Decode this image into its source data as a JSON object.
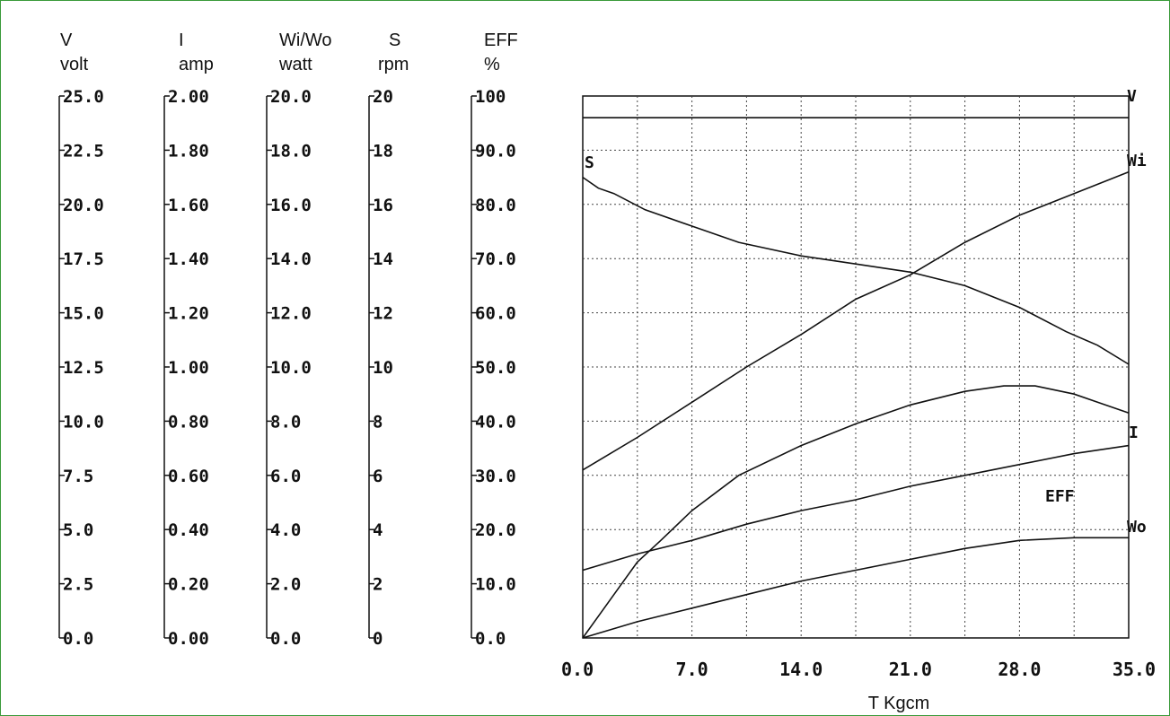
{
  "chart_data": {
    "type": "line",
    "x": {
      "symbol": "T",
      "unit": "Kgcm",
      "label": "T Kgcm",
      "range": [
        0,
        35
      ],
      "tick_labels": [
        "0.0",
        "7.0",
        "14.0",
        "21.0",
        "28.0",
        "35.0"
      ]
    },
    "y_axes": [
      {
        "id": "V",
        "symbol": "V",
        "unit": "volt",
        "range": [
          0,
          25
        ],
        "tick_labels": [
          "25.0",
          "22.5",
          "20.0",
          "17.5",
          "15.0",
          "12.5",
          "10.0",
          "7.5",
          "5.0",
          "2.5",
          "0.0"
        ]
      },
      {
        "id": "I",
        "symbol": "I",
        "unit": "amp",
        "range": [
          0,
          2
        ],
        "tick_labels": [
          "2.00",
          "1.80",
          "1.60",
          "1.40",
          "1.20",
          "1.00",
          "0.80",
          "0.60",
          "0.40",
          "0.20",
          "0.00"
        ]
      },
      {
        "id": "W",
        "symbol": "Wi/Wo",
        "unit": "watt",
        "range": [
          0,
          20
        ],
        "tick_labels": [
          "20.0",
          "18.0",
          "16.0",
          "14.0",
          "12.0",
          "10.0",
          "8.0",
          "6.0",
          "4.0",
          "2.0",
          "0.0"
        ]
      },
      {
        "id": "S",
        "symbol": "S",
        "unit": "rpm",
        "range": [
          0,
          20
        ],
        "tick_labels": [
          "20",
          "18",
          "16",
          "14",
          "12",
          "10",
          "8",
          "6",
          "4",
          "2",
          "0"
        ]
      },
      {
        "id": "EFF",
        "symbol": "EFF",
        "unit": "%",
        "range": [
          0,
          100
        ],
        "tick_labels": [
          "100",
          "90.0",
          "80.0",
          "70.0",
          "60.0",
          "50.0",
          "40.0",
          "30.0",
          "20.0",
          "10.0",
          "0.0"
        ]
      }
    ],
    "series": [
      {
        "name": "V",
        "axis": "V",
        "x": [
          0,
          35
        ],
        "y": [
          24.0,
          24.0
        ]
      },
      {
        "name": "S",
        "axis": "S",
        "x": [
          0,
          1,
          2,
          4,
          7,
          10,
          14,
          17.5,
          21,
          24.5,
          28,
          31,
          33,
          35
        ],
        "y": [
          17.0,
          16.6,
          16.4,
          15.8,
          15.2,
          14.6,
          14.1,
          13.8,
          13.5,
          13.0,
          12.2,
          11.3,
          10.8,
          10.1
        ]
      },
      {
        "name": "Wi",
        "axis": "W",
        "x": [
          0,
          3.5,
          7,
          10.5,
          14,
          17.5,
          21,
          24.5,
          28,
          31.5,
          35
        ],
        "y": [
          6.2,
          7.4,
          8.7,
          10.0,
          11.2,
          12.5,
          13.4,
          14.6,
          15.6,
          16.4,
          17.2
        ]
      },
      {
        "name": "I",
        "axis": "I",
        "x": [
          0,
          3.5,
          7,
          10.5,
          14,
          17.5,
          21,
          24.5,
          28,
          31.5,
          35
        ],
        "y": [
          0.25,
          0.31,
          0.36,
          0.42,
          0.47,
          0.51,
          0.56,
          0.6,
          0.64,
          0.68,
          0.71
        ]
      },
      {
        "name": "EFF",
        "axis": "EFF",
        "x": [
          0,
          1,
          2,
          3.5,
          5,
          7,
          10,
          14,
          17.5,
          21,
          24.5,
          27,
          29,
          31.5,
          33,
          35
        ],
        "y": [
          0,
          4,
          8,
          14,
          18,
          23.5,
          30,
          35.5,
          39.5,
          43,
          45.5,
          46.5,
          46.5,
          45,
          43.5,
          41.5
        ]
      },
      {
        "name": "Wo",
        "axis": "W",
        "x": [
          0,
          3.5,
          7,
          10.5,
          14,
          17.5,
          21,
          24.5,
          28,
          31.5,
          35
        ],
        "y": [
          0,
          0.6,
          1.1,
          1.6,
          2.1,
          2.5,
          2.9,
          3.3,
          3.6,
          3.7,
          3.7
        ]
      }
    ],
    "series_labels": [
      "V",
      "S",
      "Wi",
      "I",
      "EFF",
      "Wo"
    ],
    "grid": true
  }
}
